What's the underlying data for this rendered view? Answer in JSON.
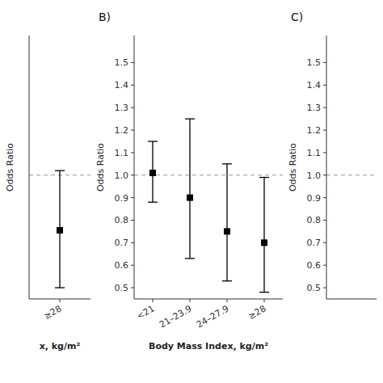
{
  "chart_data": [
    {
      "type": "errorbar",
      "xlabel": "x, kg/m²",
      "ylabel": "Odds Ratio",
      "categories": [
        "≥28"
      ],
      "values": [
        0.755
      ],
      "ci_low": [
        0.5
      ],
      "ci_high": [
        1.02
      ],
      "ylim": [
        0.45,
        1.62
      ],
      "tick_labels": "x",
      "color": "#000000",
      "ref_line": {
        "value": 1,
        "color": "#999999",
        "line_style": "dashed"
      }
    },
    {
      "type": "errorbar",
      "title": "B)",
      "xlabel": "Body Mass Index, kg/m²",
      "ylabel": "Odds Ratio",
      "categories": [
        "<21",
        "21–23.9",
        "24–27.9",
        "≥28"
      ],
      "values": [
        1.01,
        0.9,
        0.75,
        0.7
      ],
      "ci_low": [
        0.88,
        0.63,
        0.53,
        0.48
      ],
      "ci_high": [
        1.15,
        1.25,
        1.05,
        0.99
      ],
      "ylim": [
        0.45,
        1.62
      ],
      "yticks": [
        0.5,
        0.6,
        0.7,
        0.8,
        0.9,
        {
          "value": 1,
          "label": "1.0"
        },
        1.1,
        1.2,
        1.3,
        1.4,
        1.5
      ],
      "color": "#000000",
      "ref_line": {
        "value": 1,
        "color": "#999999",
        "line_style": "dashed"
      }
    },
    {
      "type": "errorbar",
      "title": "C)",
      "ylabel": "Odds Ratio",
      "categories": [],
      "values": [],
      "ylim": [
        0.45,
        1.62
      ],
      "yticks": [
        0.5,
        0.6,
        0.7,
        0.8,
        0.9,
        {
          "value": 1,
          "label": "1.0"
        },
        1.1,
        1.2,
        1.3,
        1.4,
        1.5
      ],
      "tick_labels": "y",
      "ref_line": {
        "value": 1,
        "color": "#999999",
        "line_style": "dashed"
      }
    }
  ]
}
